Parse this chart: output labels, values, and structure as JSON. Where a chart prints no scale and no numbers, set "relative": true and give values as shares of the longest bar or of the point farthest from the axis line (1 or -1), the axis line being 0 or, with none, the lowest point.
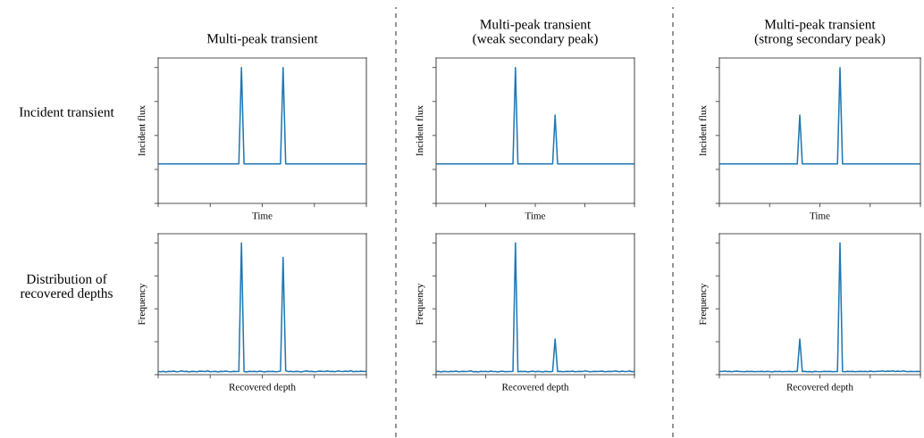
{
  "chart_data": [
    {
      "type": "line",
      "title": "Multi-peak transient",
      "ylabel": "Incident flux",
      "xlabel": "Time",
      "relative": true,
      "color": "#1f77b4",
      "annotations": [
        "Incident transient"
      ],
      "categories": [
        null,
        null,
        null,
        null,
        null,
        null,
        null,
        null,
        null,
        null,
        null,
        null,
        null,
        null,
        null,
        null,
        null,
        null,
        null,
        null,
        null,
        null,
        null,
        null,
        null,
        null,
        null,
        null,
        null,
        null,
        null,
        null,
        null,
        null,
        null,
        null,
        null,
        null,
        null,
        null,
        null,
        null,
        null,
        null,
        null,
        null,
        null,
        null,
        null,
        null,
        null,
        null,
        null,
        null,
        null,
        null,
        null,
        null,
        null,
        null,
        null,
        null,
        null,
        null,
        null,
        null,
        null,
        null,
        null,
        null,
        null,
        null,
        null,
        null,
        null,
        null,
        null,
        null,
        null,
        null,
        null
      ],
      "values": [
        0.29,
        0.29,
        0.29,
        0.29,
        0.29,
        0.29,
        0.29,
        0.29,
        0.29,
        0.29,
        0.29,
        0.29,
        0.29,
        0.29,
        0.29,
        0.29,
        0.29,
        0.29,
        0.29,
        0.29,
        0.29,
        0.29,
        0.29,
        0.29,
        0.29,
        0.29,
        0.29,
        0.29,
        0.29,
        0.29,
        0.29,
        0.29,
        1,
        0.29,
        0.29,
        0.29,
        0.29,
        0.29,
        0.29,
        0.29,
        0.29,
        0.29,
        0.29,
        0.29,
        0.29,
        0.29,
        0.29,
        0.29,
        1,
        0.29,
        0.29,
        0.29,
        0.29,
        0.29,
        0.29,
        0.29,
        0.29,
        0.29,
        0.29,
        0.29,
        0.29,
        0.29,
        0.29,
        0.29,
        0.29,
        0.29,
        0.29,
        0.29,
        0.29,
        0.29,
        0.29,
        0.29,
        0.29,
        0.29,
        0.29,
        0.29,
        0.29,
        0.29,
        0.29,
        0.29,
        0.29
      ]
    },
    {
      "type": "line",
      "title": "Multi-peak transient\n(weak secondary peak)",
      "ylabel": "Incident flux",
      "xlabel": "Time",
      "relative": true,
      "color": "#1f77b4",
      "categories": [
        null,
        null,
        null,
        null,
        null,
        null,
        null,
        null,
        null,
        null,
        null,
        null,
        null,
        null,
        null,
        null,
        null,
        null,
        null,
        null,
        null,
        null,
        null,
        null,
        null,
        null,
        null,
        null,
        null,
        null,
        null,
        null,
        null,
        null,
        null,
        null,
        null,
        null,
        null,
        null,
        null,
        null,
        null,
        null,
        null,
        null,
        null,
        null,
        null,
        null,
        null,
        null,
        null,
        null,
        null,
        null,
        null,
        null,
        null,
        null,
        null,
        null,
        null,
        null,
        null,
        null,
        null,
        null,
        null,
        null,
        null,
        null,
        null,
        null,
        null,
        null,
        null,
        null,
        null,
        null,
        null
      ],
      "values": [
        0.29,
        0.29,
        0.29,
        0.29,
        0.29,
        0.29,
        0.29,
        0.29,
        0.29,
        0.29,
        0.29,
        0.29,
        0.29,
        0.29,
        0.29,
        0.29,
        0.29,
        0.29,
        0.29,
        0.29,
        0.29,
        0.29,
        0.29,
        0.29,
        0.29,
        0.29,
        0.29,
        0.29,
        0.29,
        0.29,
        0.29,
        0.29,
        1,
        0.29,
        0.29,
        0.29,
        0.29,
        0.29,
        0.29,
        0.29,
        0.29,
        0.29,
        0.29,
        0.29,
        0.29,
        0.29,
        0.29,
        0.29,
        0.65,
        0.29,
        0.29,
        0.29,
        0.29,
        0.29,
        0.29,
        0.29,
        0.29,
        0.29,
        0.29,
        0.29,
        0.29,
        0.29,
        0.29,
        0.29,
        0.29,
        0.29,
        0.29,
        0.29,
        0.29,
        0.29,
        0.29,
        0.29,
        0.29,
        0.29,
        0.29,
        0.29,
        0.29,
        0.29,
        0.29,
        0.29,
        0.29
      ]
    },
    {
      "type": "line",
      "title": "Multi-peak transient\n(strong secondary peak)",
      "ylabel": "Incident flux",
      "xlabel": "Time",
      "relative": true,
      "color": "#1f77b4",
      "categories": [
        null,
        null,
        null,
        null,
        null,
        null,
        null,
        null,
        null,
        null,
        null,
        null,
        null,
        null,
        null,
        null,
        null,
        null,
        null,
        null,
        null,
        null,
        null,
        null,
        null,
        null,
        null,
        null,
        null,
        null,
        null,
        null,
        null,
        null,
        null,
        null,
        null,
        null,
        null,
        null,
        null,
        null,
        null,
        null,
        null,
        null,
        null,
        null,
        null,
        null,
        null,
        null,
        null,
        null,
        null,
        null,
        null,
        null,
        null,
        null,
        null,
        null,
        null,
        null,
        null,
        null,
        null,
        null,
        null,
        null,
        null,
        null,
        null,
        null,
        null,
        null,
        null,
        null,
        null,
        null,
        null
      ],
      "values": [
        0.29,
        0.29,
        0.29,
        0.29,
        0.29,
        0.29,
        0.29,
        0.29,
        0.29,
        0.29,
        0.29,
        0.29,
        0.29,
        0.29,
        0.29,
        0.29,
        0.29,
        0.29,
        0.29,
        0.29,
        0.29,
        0.29,
        0.29,
        0.29,
        0.29,
        0.29,
        0.29,
        0.29,
        0.29,
        0.29,
        0.29,
        0.29,
        0.65,
        0.29,
        0.29,
        0.29,
        0.29,
        0.29,
        0.29,
        0.29,
        0.29,
        0.29,
        0.29,
        0.29,
        0.29,
        0.29,
        0.29,
        0.29,
        1,
        0.29,
        0.29,
        0.29,
        0.29,
        0.29,
        0.29,
        0.29,
        0.29,
        0.29,
        0.29,
        0.29,
        0.29,
        0.29,
        0.29,
        0.29,
        0.29,
        0.29,
        0.29,
        0.29,
        0.29,
        0.29,
        0.29,
        0.29,
        0.29,
        0.29,
        0.29,
        0.29,
        0.29,
        0.29,
        0.29,
        0.29,
        0.29
      ]
    },
    {
      "type": "line",
      "ylabel": "Frequency",
      "xlabel": "Recovered depth",
      "relative": true,
      "color": "#1f77b4",
      "annotations": [
        "Distribution of\nrecovered depths"
      ],
      "categories": [
        null,
        null,
        null,
        null,
        null,
        null,
        null,
        null,
        null,
        null,
        null,
        null,
        null,
        null,
        null,
        null,
        null,
        null,
        null,
        null,
        null,
        null,
        null,
        null,
        null,
        null,
        null,
        null,
        null,
        null,
        null,
        null,
        null,
        null,
        null,
        null,
        null,
        null,
        null,
        null,
        null,
        null,
        null,
        null,
        null,
        null,
        null,
        null,
        null,
        null,
        null,
        null,
        null,
        null,
        null,
        null,
        null,
        null,
        null,
        null,
        null,
        null,
        null,
        null,
        null,
        null,
        null,
        null,
        null,
        null,
        null,
        null,
        null,
        null,
        null,
        null,
        null,
        null,
        null,
        null,
        null
      ],
      "values": [
        0.024,
        0.022,
        0.026,
        0.021,
        0.025,
        0.023,
        0.027,
        0.022,
        0.024,
        0.028,
        0.023,
        0.025,
        0.021,
        0.026,
        0.024,
        0.022,
        0.027,
        0.025,
        0.023,
        0.029,
        0.022,
        0.024,
        0.026,
        0.021,
        0.025,
        0.023,
        0.027,
        0.024,
        0.022,
        0.026,
        0.023,
        0.025,
        1,
        0.024,
        0.021,
        0.026,
        0.023,
        0.025,
        0.022,
        0.027,
        0.024,
        0.021,
        0.025,
        0.023,
        0.026,
        0.022,
        0.024,
        0.027,
        0.89,
        0.03,
        0.023,
        0.025,
        0.022,
        0.026,
        0.024,
        0.021,
        0.025,
        0.028,
        0.023,
        0.026,
        0.022,
        0.024,
        0.027,
        0.025,
        0.023,
        0.029,
        0.024,
        0.026,
        0.022,
        0.028,
        0.025,
        0.023,
        0.027,
        0.024,
        0.03,
        0.022,
        0.026,
        0.024,
        0.027,
        0.023,
        0.025
      ]
    },
    {
      "type": "line",
      "ylabel": "Frequency",
      "xlabel": "Recovered depth",
      "relative": true,
      "color": "#1f77b4",
      "categories": [
        null,
        null,
        null,
        null,
        null,
        null,
        null,
        null,
        null,
        null,
        null,
        null,
        null,
        null,
        null,
        null,
        null,
        null,
        null,
        null,
        null,
        null,
        null,
        null,
        null,
        null,
        null,
        null,
        null,
        null,
        null,
        null,
        null,
        null,
        null,
        null,
        null,
        null,
        null,
        null,
        null,
        null,
        null,
        null,
        null,
        null,
        null,
        null,
        null,
        null,
        null,
        null,
        null,
        null,
        null,
        null,
        null,
        null,
        null,
        null,
        null,
        null,
        null,
        null,
        null,
        null,
        null,
        null,
        null,
        null,
        null,
        null,
        null,
        null,
        null,
        null,
        null,
        null,
        null,
        null,
        null
      ],
      "values": [
        0.023,
        0.025,
        0.021,
        0.026,
        0.024,
        0.022,
        0.025,
        0.023,
        0.027,
        0.022,
        0.024,
        0.026,
        0.023,
        0.025,
        0.029,
        0.022,
        0.024,
        0.021,
        0.026,
        0.023,
        0.025,
        0.022,
        0.027,
        0.024,
        0.023,
        0.021,
        0.025,
        0.026,
        0.022,
        0.024,
        0.023,
        0.025,
        1,
        0.022,
        0.026,
        0.023,
        0.025,
        0.021,
        0.024,
        0.027,
        0.022,
        0.025,
        0.023,
        0.021,
        0.026,
        0.024,
        0.022,
        0.025,
        0.27,
        0.023,
        0.026,
        0.022,
        0.024,
        0.025,
        0.023,
        0.027,
        0.022,
        0.024,
        0.026,
        0.023,
        0.028,
        0.025,
        0.022,
        0.024,
        0.026,
        0.023,
        0.025,
        0.027,
        0.022,
        0.024,
        0.026,
        0.023,
        0.028,
        0.025,
        0.022,
        0.027,
        0.024,
        0.023,
        0.029,
        0.022,
        0.025
      ]
    },
    {
      "type": "line",
      "ylabel": "Frequency",
      "xlabel": "Recovered depth",
      "relative": true,
      "color": "#1f77b4",
      "categories": [
        null,
        null,
        null,
        null,
        null,
        null,
        null,
        null,
        null,
        null,
        null,
        null,
        null,
        null,
        null,
        null,
        null,
        null,
        null,
        null,
        null,
        null,
        null,
        null,
        null,
        null,
        null,
        null,
        null,
        null,
        null,
        null,
        null,
        null,
        null,
        null,
        null,
        null,
        null,
        null,
        null,
        null,
        null,
        null,
        null,
        null,
        null,
        null,
        null,
        null,
        null,
        null,
        null,
        null,
        null,
        null,
        null,
        null,
        null,
        null,
        null,
        null,
        null,
        null,
        null,
        null,
        null,
        null,
        null,
        null,
        null,
        null,
        null,
        null,
        null,
        null,
        null,
        null,
        null,
        null,
        null
      ],
      "values": [
        0.025,
        0.023,
        0.028,
        0.024,
        0.026,
        0.022,
        0.025,
        0.027,
        0.023,
        0.024,
        0.022,
        0.026,
        0.023,
        0.025,
        0.022,
        0.024,
        0.023,
        0.026,
        0.022,
        0.025,
        0.024,
        0.021,
        0.026,
        0.023,
        0.025,
        0.022,
        0.024,
        0.023,
        0.026,
        0.022,
        0.025,
        0.024,
        0.27,
        0.023,
        0.026,
        0.022,
        0.024,
        0.021,
        0.025,
        0.023,
        0.022,
        0.024,
        0.026,
        0.023,
        0.025,
        0.022,
        0.024,
        0.023,
        1,
        0.024,
        0.022,
        0.026,
        0.023,
        0.025,
        0.022,
        0.024,
        0.026,
        0.023,
        0.025,
        0.022,
        0.027,
        0.024,
        0.023,
        0.026,
        0.025,
        0.028,
        0.023,
        0.027,
        0.025,
        0.029,
        0.024,
        0.027,
        0.023,
        0.028,
        0.025,
        0.022,
        0.026,
        0.024,
        0.023,
        0.025,
        0.022
      ]
    }
  ]
}
